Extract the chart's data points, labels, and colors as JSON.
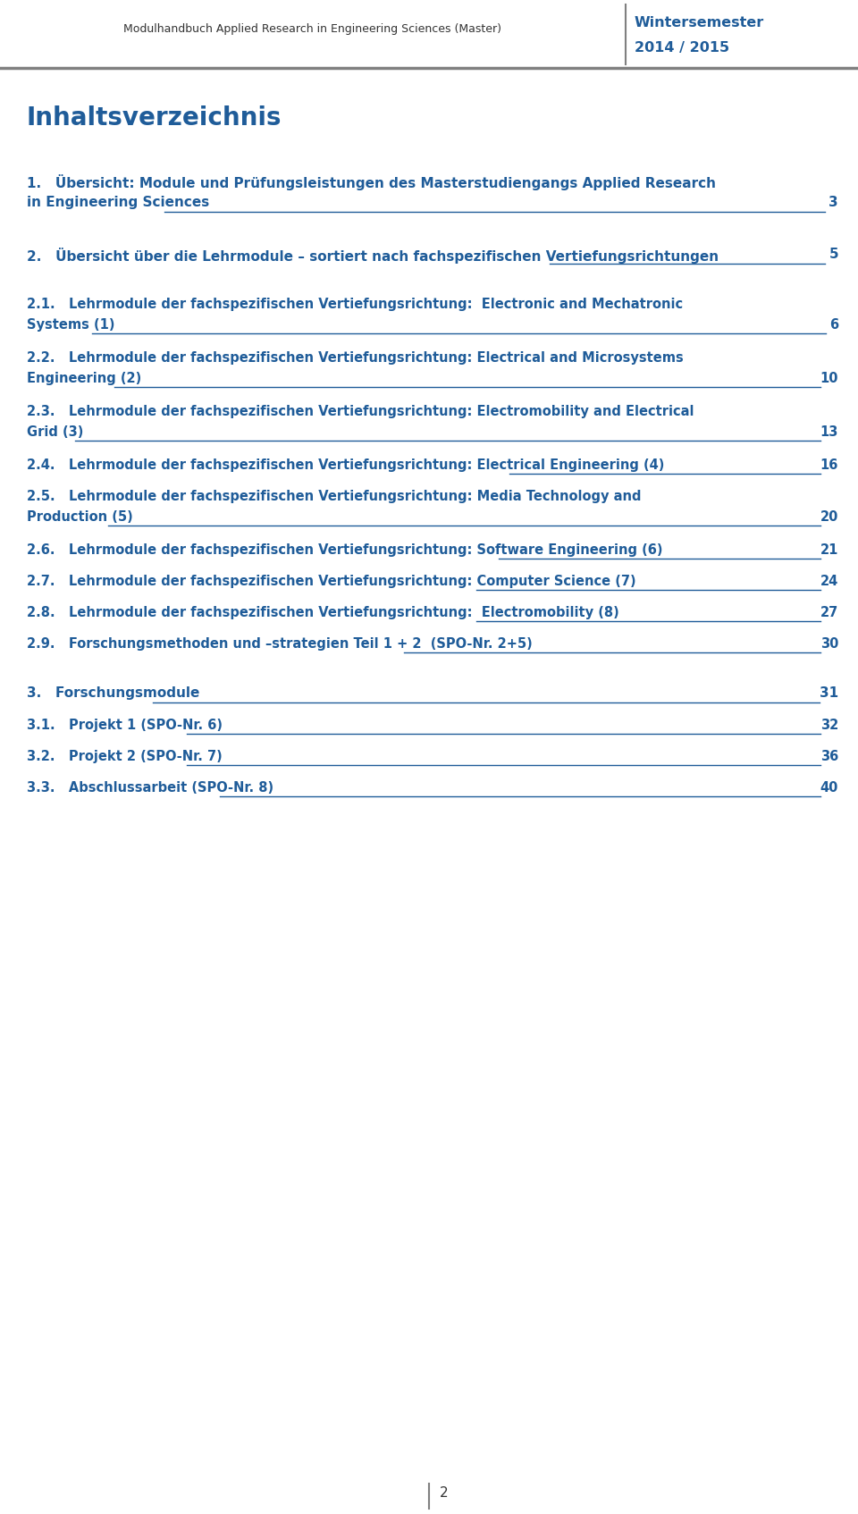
{
  "header_left": "Modulhandbuch Applied Research in Engineering Sciences (Master)",
  "header_right_line1": "Wintersemester",
  "header_right_line2": "2014 / 2015",
  "header_divider_color": "#808080",
  "header_right_color": "#1F5C99",
  "header_text_color": "#333333",
  "title": "Inhaltsverzeichnis",
  "blue": "#1F5C99",
  "footer_number": "2",
  "bg_color": "#ffffff",
  "entries": [
    {
      "num": "1.",
      "line1": "Übersicht: Module und Prüfungsleistungen des Masterstudiengangs Applied Research",
      "line2": "in Engineering Sciences",
      "page": "3",
      "large": true,
      "extra_before": 0
    },
    {
      "num": "2.",
      "line1": "Übersicht über die Lehrmodule – sortiert nach fachspezifischen Vertiefungsrichtungen",
      "line2": "",
      "page": "5",
      "large": true,
      "extra_before": 20
    },
    {
      "num": "2.1.",
      "line1": "Lehrmodule der fachspezifischen Vertiefungsrichtung:  Electronic and Mechatronic",
      "line2": "Systems (1)",
      "page": "6",
      "large": false,
      "extra_before": 20
    },
    {
      "num": "2.2.",
      "line1": "Lehrmodule der fachspezifischen Vertiefungsrichtung: Electrical and Microsystems",
      "line2": "Engineering (2)",
      "page": "10",
      "large": false,
      "extra_before": 0
    },
    {
      "num": "2.3.",
      "line1": "Lehrmodule der fachspezifischen Vertiefungsrichtung: Electromobility and Electrical",
      "line2": "Grid (3)",
      "page": "13",
      "large": false,
      "extra_before": 0
    },
    {
      "num": "2.4.",
      "line1": "Lehrmodule der fachspezifischen Vertiefungsrichtung: Electrical Engineering (4)",
      "line2": "",
      "page": "16",
      "large": false,
      "extra_before": 0
    },
    {
      "num": "2.5.",
      "line1": "Lehrmodule der fachspezifischen Vertiefungsrichtung: Media Technology and",
      "line2": "Production (5)",
      "page": "20",
      "large": false,
      "extra_before": 0
    },
    {
      "num": "2.6.",
      "line1": "Lehrmodule der fachspezifischen Vertiefungsrichtung: Software Engineering (6)",
      "line2": "",
      "page": "21",
      "large": false,
      "extra_before": 0
    },
    {
      "num": "2.7.",
      "line1": "Lehrmodule der fachspezifischen Vertiefungsrichtung: Computer Science (7)",
      "line2": "",
      "page": "24",
      "large": false,
      "extra_before": 0
    },
    {
      "num": "2.8.",
      "line1": "Lehrmodule der fachspezifischen Vertiefungsrichtung:  Electromobility (8)",
      "line2": "",
      "page": "27",
      "large": false,
      "extra_before": 0
    },
    {
      "num": "2.9.",
      "line1": "Forschungsmethoden und –strategien Teil 1 + 2  (SPO-Nr. 2+5)",
      "line2": "",
      "page": "30",
      "large": false,
      "extra_before": 0
    },
    {
      "num": "3.",
      "line1": "Forschungsmodule",
      "line2": "",
      "page": "31",
      "large": true,
      "extra_before": 20
    },
    {
      "num": "3.1.",
      "line1": "Projekt 1 (SPO-Nr. 6)",
      "line2": "",
      "page": "32",
      "large": false,
      "extra_before": 0
    },
    {
      "num": "3.2.",
      "line1": "Projekt 2 (SPO-Nr. 7)",
      "line2": "",
      "page": "36",
      "large": false,
      "extra_before": 0
    },
    {
      "num": "3.3.",
      "line1": "Abschlussarbeit (SPO-Nr. 8)",
      "line2": "",
      "page": "40",
      "large": false,
      "extra_before": 0
    }
  ]
}
